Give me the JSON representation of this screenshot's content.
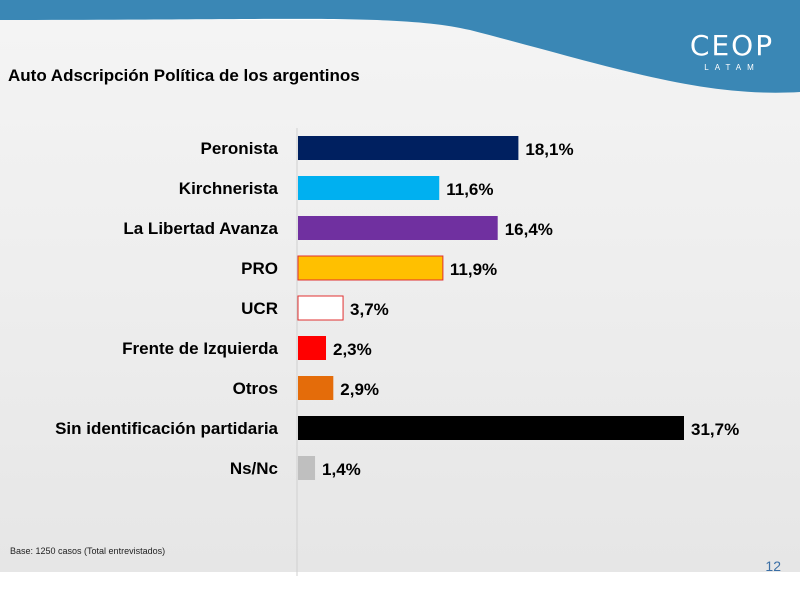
{
  "header": {
    "logo_main": "CEOP",
    "logo_sub": "LATAM",
    "band_color": "#3a87b5"
  },
  "title": "Auto Adscripción Política de los argentinos",
  "footnote": "Base: 1250 casos (Total entrevistados)",
  "page_number": "12",
  "chart_data": {
    "type": "bar",
    "orientation": "horizontal",
    "title": "Auto Adscripción Política de los argentinos",
    "xlabel": "",
    "ylabel": "",
    "xlim": [
      0,
      35
    ],
    "unit": "%",
    "grid": false,
    "categories": [
      "Peronista",
      "Kirchnerista",
      "La Libertad Avanza",
      "PRO",
      "UCR",
      "Frente de Izquierda",
      "Otros",
      "Sin identificación partidaria",
      "Ns/Nc"
    ],
    "values": [
      18.1,
      11.6,
      16.4,
      11.9,
      3.7,
      2.3,
      2.9,
      31.7,
      1.4
    ],
    "value_labels": [
      "18,1%",
      "11,6%",
      "16,4%",
      "11,9%",
      "3,7%",
      "2,3%",
      "2,9%",
      "31,7%",
      "1,4%"
    ],
    "colors": [
      "#002060",
      "#00b0f0",
      "#7030a0",
      "#ffc000",
      "#ffffff",
      "#ff0000",
      "#e46c0a",
      "#000000",
      "#bfbfbf"
    ],
    "outline_colors": [
      "",
      "",
      "",
      "#e03030",
      "#e03030",
      "",
      "",
      "",
      ""
    ]
  }
}
